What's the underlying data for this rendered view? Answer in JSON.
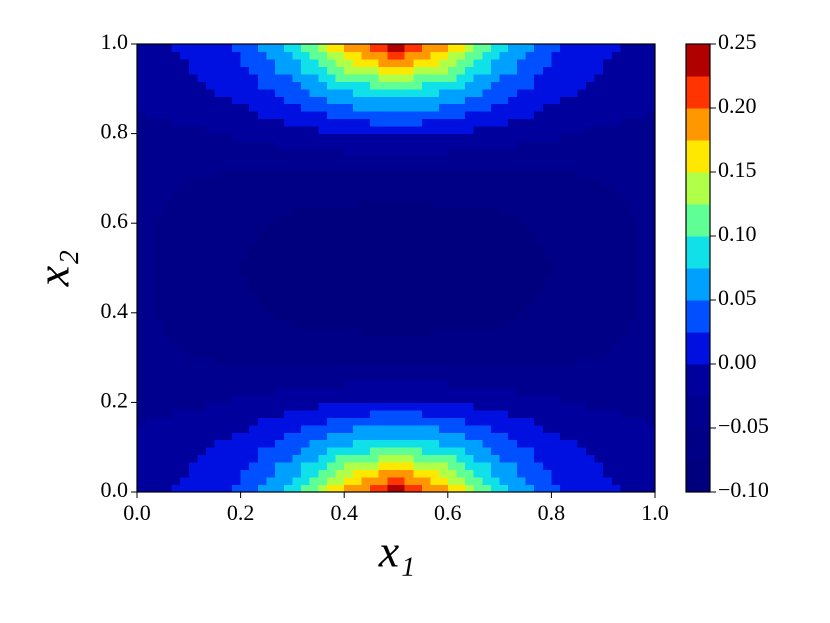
{
  "chart_data": {
    "type": "contour",
    "xlabel": "x₁",
    "ylabel": "x₂",
    "x": [
      0,
      0.1,
      0.2,
      0.3,
      0.4,
      0.5,
      0.6,
      0.7,
      0.8,
      0.9,
      1.0
    ],
    "y": [
      0,
      0.1,
      0.2,
      0.3,
      0.4,
      0.5,
      0.6,
      0.7,
      0.8,
      0.9,
      1.0
    ],
    "z": [
      [
        -0.01,
        0.005,
        0.03,
        0.09,
        0.18,
        0.25,
        0.18,
        0.09,
        0.03,
        0.005,
        -0.01
      ],
      [
        -0.02,
        -0.005,
        0.01,
        0.04,
        0.08,
        0.1,
        0.08,
        0.04,
        0.01,
        -0.005,
        -0.02
      ],
      [
        -0.03,
        -0.03,
        -0.02,
        -0.01,
        0.0,
        0.005,
        0.0,
        -0.01,
        -0.02,
        -0.03,
        -0.03
      ],
      [
        -0.04,
        -0.05,
        -0.055,
        -0.06,
        -0.06,
        -0.06,
        -0.06,
        -0.06,
        -0.055,
        -0.05,
        -0.04
      ],
      [
        -0.045,
        -0.06,
        -0.07,
        -0.08,
        -0.085,
        -0.087,
        -0.085,
        -0.08,
        -0.07,
        -0.06,
        -0.045
      ],
      [
        -0.045,
        -0.065,
        -0.075,
        -0.085,
        -0.09,
        -0.09,
        -0.09,
        -0.085,
        -0.075,
        -0.065,
        -0.045
      ],
      [
        -0.045,
        -0.06,
        -0.07,
        -0.08,
        -0.085,
        -0.087,
        -0.085,
        -0.08,
        -0.07,
        -0.06,
        -0.045
      ],
      [
        -0.04,
        -0.05,
        -0.055,
        -0.06,
        -0.06,
        -0.06,
        -0.06,
        -0.06,
        -0.055,
        -0.05,
        -0.04
      ],
      [
        -0.03,
        -0.03,
        -0.02,
        -0.01,
        0.0,
        0.005,
        0.0,
        -0.01,
        -0.02,
        -0.03,
        -0.03
      ],
      [
        -0.02,
        -0.005,
        0.01,
        0.04,
        0.08,
        0.1,
        0.08,
        0.04,
        0.01,
        -0.005,
        -0.02
      ],
      [
        -0.01,
        0.005,
        0.03,
        0.09,
        0.18,
        0.25,
        0.18,
        0.09,
        0.03,
        0.005,
        -0.01
      ]
    ],
    "levels": [
      -0.1,
      -0.075,
      -0.05,
      -0.025,
      0,
      0.025,
      0.05,
      0.075,
      0.1,
      0.125,
      0.15,
      0.175,
      0.2,
      0.225,
      0.25
    ],
    "colors": [
      "#00007f",
      "#000086",
      "#00008f",
      "#00009c",
      "#0010e0",
      "#0050ff",
      "#00a0ff",
      "#10e0e8",
      "#60ff96",
      "#b0ff48",
      "#ffe800",
      "#ff9800",
      "#ff3400",
      "#b00000"
    ],
    "xlim": [
      0,
      1
    ],
    "ylim": [
      0,
      1
    ],
    "xticks": [
      {
        "value": 0,
        "label": "0.0"
      },
      0.2,
      0.4,
      0.6,
      0.8,
      {
        "value": 1,
        "label": "1.0"
      }
    ],
    "yticks": [
      {
        "value": 0,
        "label": "0.0"
      },
      0.2,
      0.4,
      0.6,
      0.8,
      {
        "value": 1,
        "label": "1.0"
      }
    ],
    "colorbar_lim": [
      -0.1,
      0.25
    ],
    "colorbar_ticks": [
      {
        "value": -0.1,
        "label": "−0.10"
      },
      {
        "value": -0.05,
        "label": "−0.05"
      },
      {
        "value": 0,
        "label": "0.00"
      },
      0.05,
      {
        "value": 0.1,
        "label": "0.10"
      },
      0.15,
      {
        "value": 0.2,
        "label": "0.20"
      },
      0.25
    ]
  }
}
